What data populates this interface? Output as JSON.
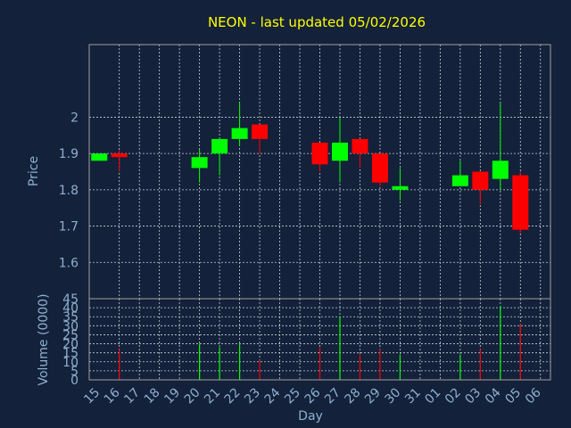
{
  "chart_data": {
    "type": "candlestick",
    "title": "NEON - last updated 05/02/2026",
    "colors": {
      "background": "#13213a",
      "title": "#ffff00",
      "axis_text": "#8fb0d0",
      "grid": "#c8d0d8",
      "frame": "#a0a0a0",
      "up": "#00ff00",
      "down": "#ff0000"
    },
    "grid": true,
    "xlabel": "Day",
    "x_ticks": [
      "15",
      "16",
      "17",
      "18",
      "19",
      "20",
      "21",
      "22",
      "23",
      "24",
      "25",
      "26",
      "27",
      "28",
      "29",
      "30",
      "31",
      "01",
      "02",
      "03",
      "04",
      "05",
      "06"
    ],
    "price_panel": {
      "ylabel": "Price",
      "ylim": [
        1.5,
        2.2
      ],
      "ticks": [
        1.6,
        1.7,
        1.8,
        1.9,
        2.0
      ],
      "tick_labels": [
        "1.6",
        "1.7",
        "1.8",
        "1.9",
        "2"
      ]
    },
    "volume_panel": {
      "ylabel": "Volume (0000)",
      "ylim": [
        0,
        45
      ],
      "ticks": [
        0,
        5,
        10,
        15,
        20,
        25,
        30,
        35,
        40,
        45
      ],
      "tick_labels": [
        "0",
        "5",
        "10",
        "15",
        "20",
        "25",
        "30",
        "35",
        "40",
        "45"
      ]
    },
    "candles": [
      {
        "day": "15",
        "open": 1.88,
        "high": 1.9,
        "low": 1.88,
        "close": 1.9
      },
      {
        "day": "16",
        "open": 1.9,
        "high": 1.91,
        "low": 1.85,
        "close": 1.89
      },
      {
        "day": "20",
        "open": 1.86,
        "high": 1.91,
        "low": 1.82,
        "close": 1.89
      },
      {
        "day": "21",
        "open": 1.9,
        "high": 1.94,
        "low": 1.84,
        "close": 1.94
      },
      {
        "day": "22",
        "open": 1.94,
        "high": 2.04,
        "low": 1.92,
        "close": 1.97
      },
      {
        "day": "23",
        "open": 1.98,
        "high": 1.98,
        "low": 1.9,
        "close": 1.94
      },
      {
        "day": "26",
        "open": 1.93,
        "high": 1.93,
        "low": 1.85,
        "close": 1.87
      },
      {
        "day": "27",
        "open": 1.88,
        "high": 2.0,
        "low": 1.82,
        "close": 1.93
      },
      {
        "day": "28",
        "open": 1.94,
        "high": 1.94,
        "low": 1.86,
        "close": 1.9
      },
      {
        "day": "29",
        "open": 1.9,
        "high": 1.9,
        "low": 1.81,
        "close": 1.82
      },
      {
        "day": "30",
        "open": 1.8,
        "high": 1.86,
        "low": 1.77,
        "close": 1.81
      },
      {
        "day": "02",
        "open": 1.81,
        "high": 1.88,
        "low": 1.81,
        "close": 1.84
      },
      {
        "day": "03",
        "open": 1.85,
        "high": 1.85,
        "low": 1.76,
        "close": 1.8
      },
      {
        "day": "04",
        "open": 1.83,
        "high": 2.04,
        "low": 1.8,
        "close": 1.88
      },
      {
        "day": "05",
        "open": 1.84,
        "high": 1.85,
        "low": 1.68,
        "close": 1.69
      }
    ],
    "volume": [
      {
        "day": "16",
        "value": 17,
        "direction": "down"
      },
      {
        "day": "20",
        "value": 20,
        "direction": "up"
      },
      {
        "day": "21",
        "value": 18,
        "direction": "up"
      },
      {
        "day": "22",
        "value": 20,
        "direction": "up"
      },
      {
        "day": "23",
        "value": 11,
        "direction": "down"
      },
      {
        "day": "26",
        "value": 18,
        "direction": "down"
      },
      {
        "day": "27",
        "value": 35,
        "direction": "up"
      },
      {
        "day": "28",
        "value": 14,
        "direction": "down"
      },
      {
        "day": "29",
        "value": 17,
        "direction": "down"
      },
      {
        "day": "30",
        "value": 14,
        "direction": "up"
      },
      {
        "day": "02",
        "value": 14,
        "direction": "up"
      },
      {
        "day": "03",
        "value": 17,
        "direction": "down"
      },
      {
        "day": "04",
        "value": 41,
        "direction": "up"
      },
      {
        "day": "05",
        "value": 31,
        "direction": "down"
      }
    ]
  }
}
